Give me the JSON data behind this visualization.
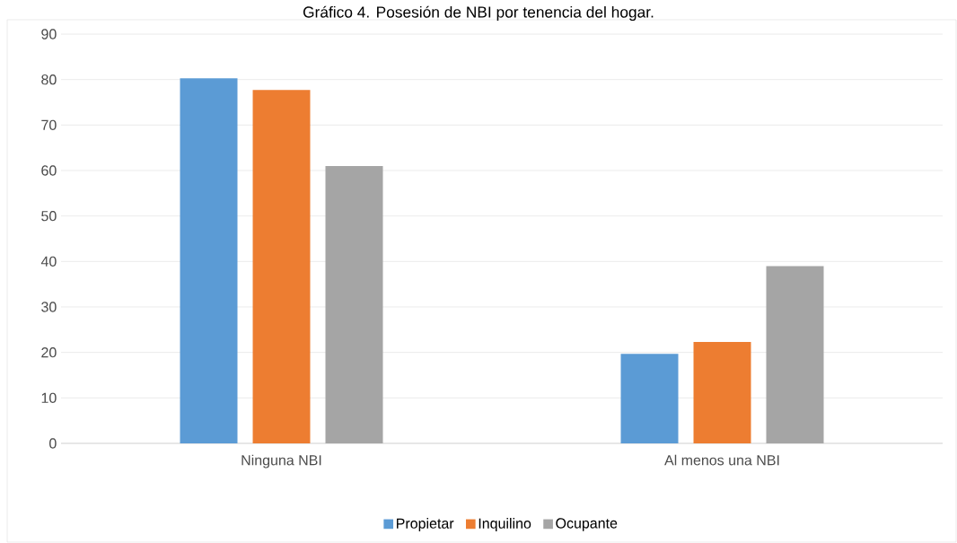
{
  "chart_data": {
    "type": "bar",
    "title": "Gráfico 4. Posesión de NBI por tenencia del hogar.",
    "categories": [
      "Ninguna NBI",
      "Al menos una NBI"
    ],
    "series": [
      {
        "name": "Propietar",
        "color": "#5b9bd5",
        "values": [
          80.3,
          19.7
        ]
      },
      {
        "name": "Inquilino",
        "color": "#ed7d31",
        "values": [
          77.7,
          22.3
        ]
      },
      {
        "name": "Ocupante",
        "color": "#a5a5a5",
        "values": [
          61.0,
          39.0
        ]
      }
    ],
    "ylim": [
      0,
      90
    ],
    "yticks": [
      0,
      10,
      20,
      30,
      40,
      50,
      60,
      70,
      80,
      90
    ],
    "grid": "y",
    "legend": "bottom"
  }
}
